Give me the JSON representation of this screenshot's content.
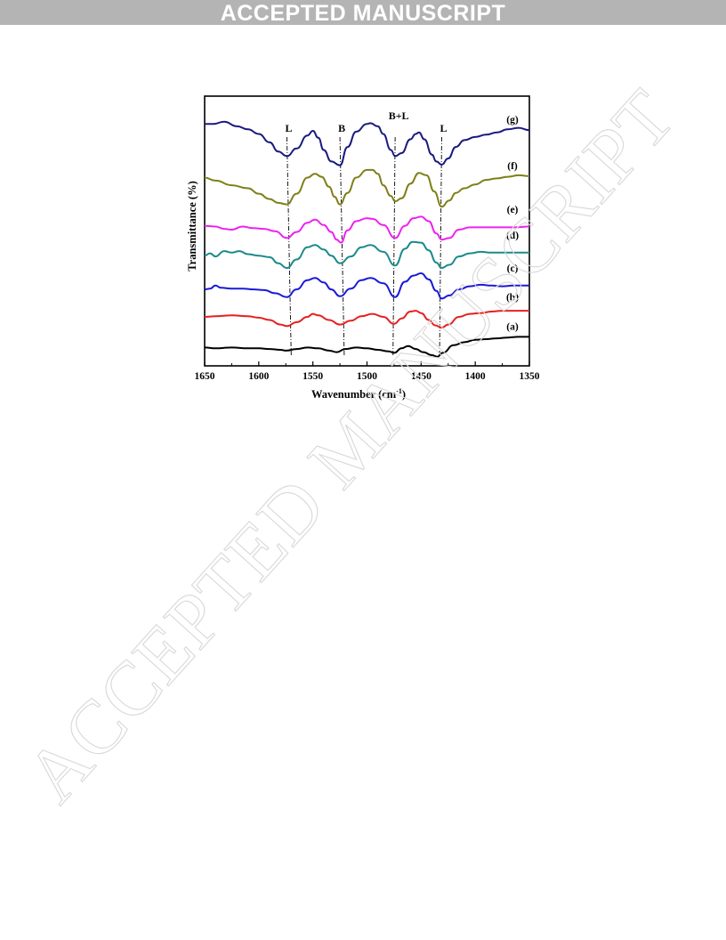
{
  "header": {
    "banner_text": "ACCEPTED MANUSCRIPT"
  },
  "watermark": {
    "text": "ACCEPTED MANUSCRIPT"
  },
  "colors": {
    "banner_bg": "#b4b4b4",
    "a": "#000000",
    "b": "#e62020",
    "c": "#1a1ad8",
    "d": "#1c8a8a",
    "e": "#ee22ee",
    "f": "#7f7f1a",
    "g": "#1a1a80"
  },
  "chart_data": {
    "type": "line",
    "title": "",
    "xlabel": "Wavenumber (cm",
    "xlabel_sup": "-1",
    "xlabel_close": ")",
    "ylabel": "Transmittance (%)",
    "xlim": [
      1650,
      1350
    ],
    "x_reversed": true,
    "y_ticks_shown": false,
    "xticks": [
      1650,
      1600,
      1550,
      1500,
      1450,
      1400,
      1350
    ],
    "offset_stacked": true,
    "band_markers": [
      {
        "label": "L",
        "x": 1574
      },
      {
        "label": "B",
        "x": 1525
      },
      {
        "label": "B+L",
        "x": 1474
      },
      {
        "label": "L",
        "x": 1431
      }
    ],
    "series": [
      {
        "name": "(a)",
        "color": "#000000",
        "baseline": 0,
        "x": [
          1650,
          1640,
          1625,
          1610,
          1600,
          1590,
          1580,
          1575,
          1565,
          1555,
          1545,
          1535,
          1528,
          1520,
          1510,
          1500,
          1490,
          1480,
          1475,
          1468,
          1462,
          1455,
          1448,
          1440,
          1435,
          1430,
          1420,
          1410,
          1400,
          1390,
          1380,
          1370,
          1360,
          1350
        ],
        "y": [
          3,
          2,
          3,
          2,
          2,
          1,
          0,
          -1,
          1,
          3,
          2,
          -1,
          -3,
          1,
          3,
          2,
          0,
          -2,
          -4,
          2,
          5,
          1,
          -3,
          -7,
          -9,
          -4,
          6,
          10,
          13,
          14,
          15,
          16,
          17,
          17
        ]
      },
      {
        "name": "(b)",
        "color": "#e62020",
        "baseline": 45,
        "x": [
          1650,
          1640,
          1625,
          1610,
          1600,
          1590,
          1580,
          1574,
          1565,
          1555,
          1550,
          1545,
          1535,
          1525,
          1515,
          1505,
          1495,
          1485,
          1475,
          1468,
          1460,
          1455,
          1450,
          1443,
          1437,
          1431,
          1425,
          1415,
          1405,
          1395,
          1385,
          1375,
          1365,
          1350
        ],
        "y": [
          -2,
          -1,
          0,
          -1,
          -3,
          -6,
          -12,
          -14,
          -9,
          -2,
          2,
          0,
          -6,
          -12,
          -7,
          -1,
          2,
          -2,
          -11,
          -4,
          5,
          6,
          3,
          -6,
          -13,
          -16,
          -12,
          -2,
          2,
          3,
          5,
          6,
          6,
          6
        ]
      },
      {
        "name": "(c)",
        "color": "#1a1ad8",
        "baseline": 83,
        "x": [
          1650,
          1645,
          1640,
          1635,
          1625,
          1615,
          1605,
          1595,
          1585,
          1574,
          1565,
          1555,
          1548,
          1540,
          1533,
          1525,
          1515,
          1505,
          1497,
          1485,
          1474,
          1465,
          1457,
          1450,
          1443,
          1436,
          1431,
          1424,
          1415,
          1405,
          1395,
          1385,
          1375,
          1365,
          1350
        ],
        "y": [
          -4,
          -3,
          1,
          -2,
          -3,
          -3,
          -4,
          -5,
          -9,
          -14,
          -4,
          8,
          11,
          5,
          -4,
          -13,
          -3,
          8,
          11,
          4,
          -14,
          6,
          14,
          17,
          9,
          -6,
          -16,
          -12,
          -4,
          0,
          2,
          1,
          0,
          1,
          1
        ]
      },
      {
        "name": "(d)",
        "color": "#1c8a8a",
        "baseline": 126,
        "x": [
          1650,
          1645,
          1640,
          1632,
          1625,
          1618,
          1610,
          1600,
          1590,
          1582,
          1574,
          1565,
          1555,
          1548,
          1540,
          1533,
          1525,
          1515,
          1505,
          1497,
          1485,
          1474,
          1465,
          1458,
          1450,
          1443,
          1436,
          1431,
          1424,
          1415,
          1405,
          1395,
          1385,
          1375,
          1365,
          1350
        ],
        "y": [
          -3,
          0,
          -4,
          3,
          1,
          3,
          -1,
          -3,
          -5,
          -13,
          -19,
          -8,
          8,
          11,
          5,
          -3,
          -13,
          -4,
          8,
          11,
          2,
          -16,
          6,
          15,
          14,
          4,
          -12,
          -19,
          -15,
          -4,
          0,
          2,
          1,
          1,
          1,
          1
        ]
      },
      {
        "name": "(e)",
        "color": "#ee22ee",
        "baseline": 160,
        "x": [
          1650,
          1640,
          1632,
          1625,
          1615,
          1605,
          1595,
          1585,
          1574,
          1565,
          1555,
          1548,
          1540,
          1533,
          1528,
          1524,
          1518,
          1510,
          1500,
          1495,
          1485,
          1474,
          1465,
          1457,
          1450,
          1443,
          1436,
          1431,
          1424,
          1415,
          1405,
          1395,
          1385,
          1375,
          1365,
          1350
        ],
        "y": [
          2,
          1,
          -2,
          -3,
          1,
          -1,
          -2,
          -5,
          -14,
          -6,
          6,
          10,
          3,
          -6,
          -16,
          -20,
          -4,
          8,
          12,
          11,
          3,
          -14,
          2,
          12,
          14,
          8,
          -8,
          -16,
          -14,
          -3,
          0,
          0,
          0,
          0,
          0,
          1
        ]
      },
      {
        "name": "(f)",
        "color": "#7f7f1a",
        "baseline": 205,
        "x": [
          1650,
          1640,
          1625,
          1610,
          1600,
          1590,
          1582,
          1574,
          1565,
          1555,
          1548,
          1542,
          1535,
          1530,
          1525,
          1518,
          1510,
          1500,
          1495,
          1490,
          1485,
          1478,
          1474,
          1468,
          1460,
          1452,
          1445,
          1438,
          1431,
          1424,
          1418,
          1410,
          1400,
          1390,
          1380,
          1370,
          1360,
          1350
        ],
        "y": [
          20,
          16,
          10,
          6,
          -1,
          -8,
          -13,
          -15,
          -1,
          20,
          25,
          21,
          8,
          -5,
          -15,
          0,
          20,
          30,
          30,
          25,
          10,
          -4,
          -11,
          -7,
          12,
          26,
          23,
          2,
          -18,
          -10,
          0,
          6,
          11,
          17,
          19,
          21,
          23,
          22
        ]
      },
      {
        "name": "(g)",
        "color": "#1a1a80",
        "baseline": 255,
        "x": [
          1650,
          1642,
          1632,
          1620,
          1610,
          1600,
          1590,
          1582,
          1574,
          1565,
          1555,
          1550,
          1545,
          1540,
          1533,
          1525,
          1518,
          1510,
          1500,
          1497,
          1490,
          1485,
          1478,
          1474,
          1468,
          1460,
          1455,
          1452,
          1447,
          1440,
          1436,
          1431,
          1425,
          1418,
          1410,
          1400,
          1390,
          1380,
          1370,
          1360,
          1350
        ],
        "y": [
          40,
          40,
          43,
          37,
          33,
          27,
          16,
          4,
          -2,
          8,
          25,
          31,
          22,
          6,
          -9,
          -14,
          10,
          30,
          40,
          41,
          37,
          27,
          6,
          -2,
          2,
          20,
          27,
          29,
          20,
          0,
          -9,
          -13,
          -5,
          10,
          19,
          23,
          26,
          29,
          33,
          35,
          32
        ]
      }
    ]
  }
}
